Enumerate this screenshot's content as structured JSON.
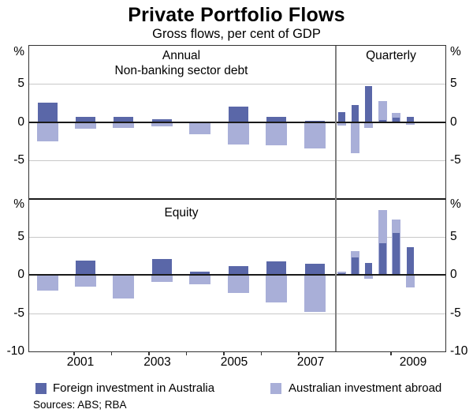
{
  "title": "Private Portfolio Flows",
  "subtitle": "Gross flows, per cent of GDP",
  "sources": "Sources: ABS; RBA",
  "chart_data": {
    "type": "bar",
    "title": "Private Portfolio Flows",
    "subtitle": "Gross flows, per cent of GDP",
    "legend_position": "bottom",
    "grid": true,
    "x_tick_labels": [
      "2001",
      "2003",
      "2005",
      "2007",
      "2009"
    ],
    "colors": {
      "foreign_investment": "#5A67A8",
      "australian_abroad": "#A9AFD8",
      "gridline": "#c8c8c8"
    },
    "legend": [
      {
        "label": "Foreign investment in Australia",
        "color": "#5A67A8"
      },
      {
        "label": "Australian investment abroad",
        "color": "#A9AFD8"
      }
    ],
    "panels": [
      {
        "panel_label": "Non-banking sector debt",
        "section_labels": [
          "Annual",
          "Quarterly"
        ],
        "y_axis": {
          "unit": "%",
          "labeled_ticks": [
            5,
            0,
            -5
          ],
          "ylim": [
            -10,
            10
          ]
        },
        "annual": {
          "x": [
            2000,
            2001,
            2002,
            2003,
            2004,
            2005,
            2006,
            2007
          ],
          "series": [
            {
              "name": "Foreign investment in Australia",
              "values": [
                2.5,
                0.7,
                0.7,
                0.4,
                0.1,
                2.0,
                0.7,
                0.2
              ]
            },
            {
              "name": "Australian investment abroad",
              "values": [
                -2.5,
                -0.9,
                -0.8,
                -0.6,
                -1.6,
                -2.9,
                -3.0,
                -3.5
              ]
            }
          ]
        },
        "quarterly": {
          "x": [
            "2008 Q1",
            "2008 Q2",
            "2008 Q3",
            "2008 Q4",
            "2009 Q1",
            "2009 Q2"
          ],
          "series": [
            {
              "name": "Foreign investment in Australia",
              "values": [
                1.3,
                2.2,
                4.7,
                0.3,
                0.6,
                0.7
              ]
            },
            {
              "name": "Australian investment abroad",
              "values": [
                -0.5,
                -4.1,
                -0.8,
                2.7,
                1.2,
                -0.4
              ]
            }
          ]
        }
      },
      {
        "panel_label": "Equity",
        "section_labels": [],
        "y_axis": {
          "unit": "%",
          "labeled_ticks": [
            5,
            0,
            -5,
            -10
          ],
          "ylim": [
            -10,
            10
          ]
        },
        "annual": {
          "x": [
            2000,
            2001,
            2002,
            2003,
            2004,
            2005,
            2006,
            2007
          ],
          "series": [
            {
              "name": "Foreign investment in Australia",
              "values": [
                0.1,
                1.9,
                0.1,
                2.1,
                0.4,
                1.2,
                1.8,
                1.5
              ]
            },
            {
              "name": "Australian investment abroad",
              "values": [
                -2.0,
                -1.5,
                -3.1,
                -0.9,
                -1.2,
                -2.3,
                -3.6,
                -4.8
              ]
            }
          ]
        },
        "quarterly": {
          "x": [
            "2008 Q1",
            "2008 Q2",
            "2008 Q3",
            "2008 Q4",
            "2009 Q1",
            "2009 Q2"
          ],
          "series": [
            {
              "name": "Foreign investment in Australia",
              "values": [
                0.2,
                2.3,
                1.6,
                4.2,
                5.5,
                3.6
              ]
            },
            {
              "name": "Australian investment abroad",
              "values": [
                0.4,
                3.1,
                -0.5,
                8.5,
                7.3,
                -1.6
              ]
            }
          ]
        }
      }
    ]
  }
}
